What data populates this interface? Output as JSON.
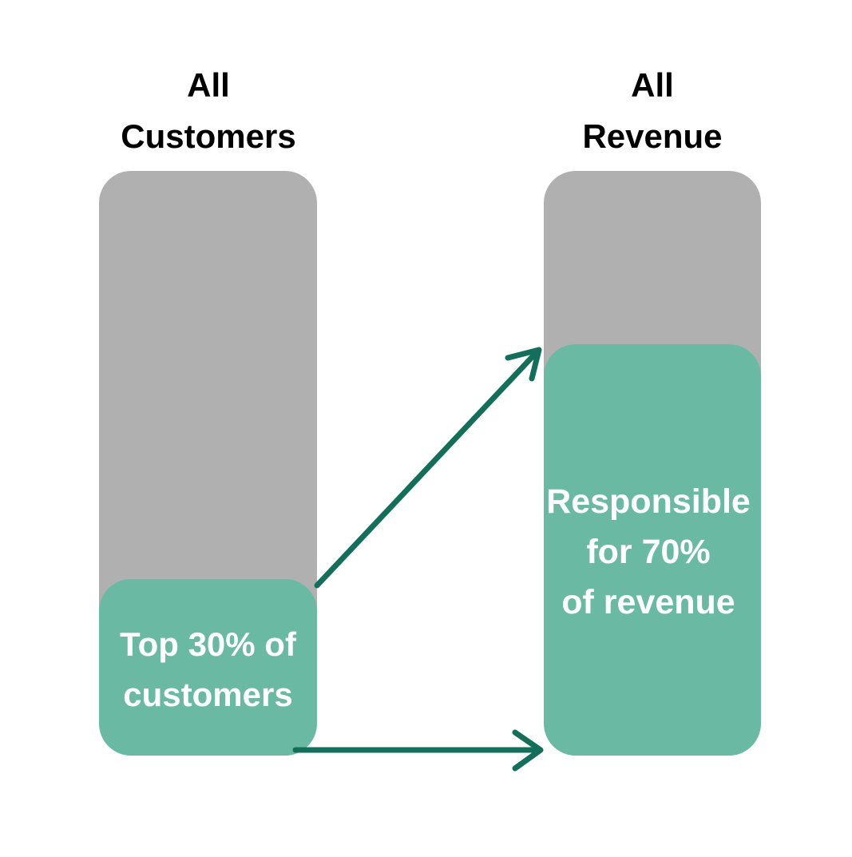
{
  "left_column": {
    "heading_line1": "All",
    "heading_line2": "Customers",
    "highlight_line1": "Top 30% of",
    "highlight_line2": "customers",
    "highlight_share_percent": 30
  },
  "right_column": {
    "heading_line1": "All",
    "heading_line2": "Revenue",
    "highlight_line1": "Responsible",
    "highlight_line2": "for 70%",
    "highlight_line3": "of revenue",
    "highlight_share_percent": 70
  },
  "colors": {
    "background": "#ffffff",
    "bar_gray": "#b0b0b0",
    "highlight_green": "#69b9a3",
    "arrow_green": "#136e5a",
    "heading_text": "#000000",
    "highlight_text": "#ffffff"
  }
}
